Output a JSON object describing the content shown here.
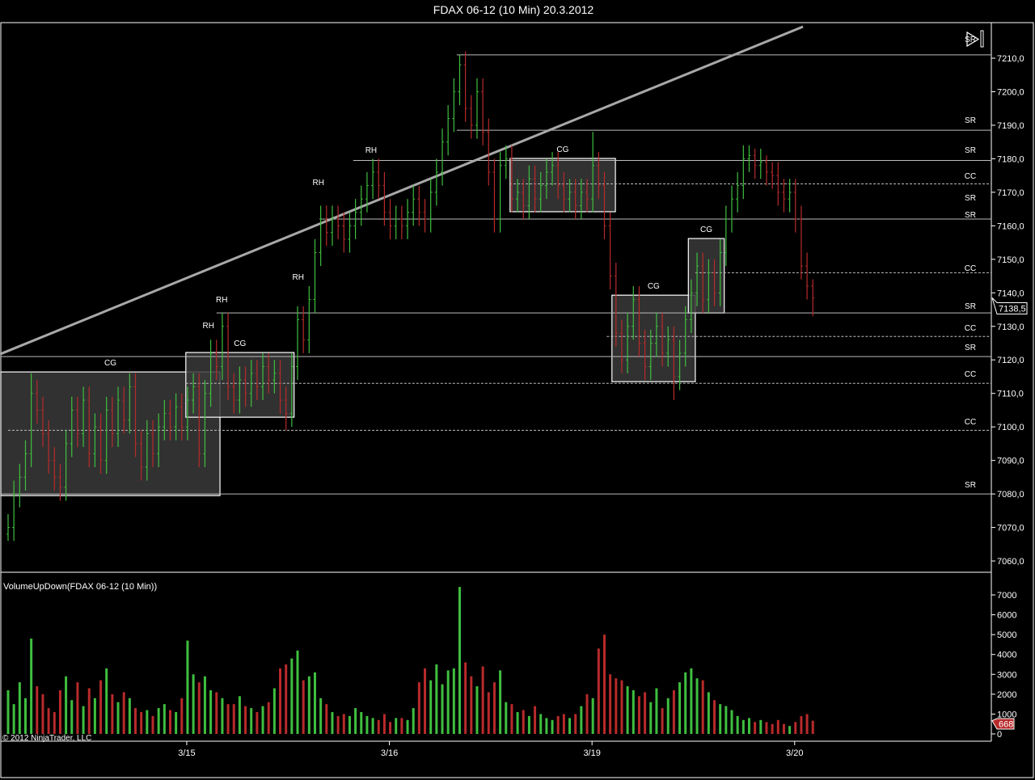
{
  "window": {
    "title": "FDAX 06-12 (10 Min)  20.3.2012"
  },
  "colors": {
    "up": "#3fbf3f",
    "down": "#b82a2a",
    "background": "#000000",
    "box_fill": "#3a3a3a",
    "level_line": "#bdbdbd",
    "trendline": "#a8a8a8",
    "volume_marker": "#b82a2a"
  },
  "indicator_label": "VolumeUpDown(FDAX 06-12 (10 Min))",
  "copyright": "© 2012 NinjaTrader, LLC",
  "chart_data": [
    {
      "type": "ohlc",
      "title": "FDAX 06-12 (10 Min)  20.3.2012",
      "y_ticks": [
        "7060,0",
        "7070,0",
        "7080,0",
        "7090,0",
        "7100,0",
        "7110,0",
        "7120,0",
        "7130,0",
        "7140,0",
        "7150,0",
        "7160,0",
        "7170,0",
        "7180,0",
        "7190,0",
        "7200,0",
        "7210,0"
      ],
      "ylim": [
        7056,
        7222
      ],
      "x_ticks": [
        {
          "label": "3/15",
          "bar": 31
        },
        {
          "label": "3/16",
          "bar": 66
        },
        {
          "label": "3/19",
          "bar": 101
        },
        {
          "label": "3/20",
          "bar": 136
        }
      ],
      "last_price": "7138,5",
      "bars_ohlc": [
        [
          7068,
          7074,
          7066,
          7070
        ],
        [
          7070,
          7084,
          7066,
          7080
        ],
        [
          7080,
          7089,
          7076,
          7085
        ],
        [
          7085,
          7096,
          7081,
          7092
        ],
        [
          7092,
          7116,
          7088,
          7110
        ],
        [
          7110,
          7114,
          7101,
          7105
        ],
        [
          7105,
          7109,
          7094,
          7098
        ],
        [
          7098,
          7102,
          7086,
          7090
        ],
        [
          7090,
          7094,
          7081,
          7085
        ],
        [
          7085,
          7089,
          7078,
          7082
        ],
        [
          7082,
          7099,
          7078,
          7095
        ],
        [
          7095,
          7109,
          7091,
          7105
        ],
        [
          7105,
          7109,
          7094,
          7098
        ],
        [
          7098,
          7112,
          7094,
          7108
        ],
        [
          7108,
          7112,
          7088,
          7092
        ],
        [
          7092,
          7104,
          7088,
          7100
        ],
        [
          7100,
          7104,
          7086,
          7090
        ],
        [
          7090,
          7109,
          7086,
          7105
        ],
        [
          7105,
          7109,
          7094,
          7098
        ],
        [
          7098,
          7112,
          7094,
          7108
        ],
        [
          7108,
          7112,
          7098,
          7102
        ],
        [
          7102,
          7116,
          7098,
          7112
        ],
        [
          7112,
          7116,
          7091,
          7095
        ],
        [
          7095,
          7099,
          7084,
          7088
        ],
        [
          7088,
          7102,
          7084,
          7098
        ],
        [
          7098,
          7102,
          7088,
          7092
        ],
        [
          7092,
          7104,
          7088,
          7100
        ],
        [
          7100,
          7108,
          7096,
          7104
        ],
        [
          7104,
          7108,
          7096,
          7100
        ],
        [
          7100,
          7110,
          7096,
          7106
        ],
        [
          7106,
          7110,
          7096,
          7100
        ],
        [
          7100,
          7112,
          7096,
          7108
        ],
        [
          7108,
          7116,
          7104,
          7112
        ],
        [
          7112,
          7116,
          7088,
          7092
        ],
        [
          7092,
          7114,
          7088,
          7110
        ],
        [
          7110,
          7126,
          7106,
          7122
        ],
        [
          7122,
          7126,
          7114,
          7118
        ],
        [
          7118,
          7134,
          7114,
          7130
        ],
        [
          7130,
          7134,
          7108,
          7112
        ],
        [
          7112,
          7116,
          7104,
          7108
        ],
        [
          7108,
          7118,
          7104,
          7114
        ],
        [
          7114,
          7118,
          7106,
          7110
        ],
        [
          7110,
          7120,
          7106,
          7116
        ],
        [
          7116,
          7120,
          7108,
          7112
        ],
        [
          7112,
          7122,
          7108,
          7118
        ],
        [
          7118,
          7122,
          7110,
          7114
        ],
        [
          7114,
          7120,
          7110,
          7116
        ],
        [
          7116,
          7120,
          7104,
          7108
        ],
        [
          7108,
          7112,
          7099,
          7104
        ],
        [
          7104,
          7122,
          7100,
          7118
        ],
        [
          7118,
          7136,
          7114,
          7132
        ],
        [
          7132,
          7136,
          7122,
          7126
        ],
        [
          7126,
          7142,
          7122,
          7138
        ],
        [
          7138,
          7156,
          7134,
          7152
        ],
        [
          7152,
          7166,
          7148,
          7162
        ],
        [
          7162,
          7166,
          7154,
          7158
        ],
        [
          7158,
          7166,
          7154,
          7162
        ],
        [
          7162,
          7166,
          7156,
          7160
        ],
        [
          7160,
          7164,
          7152,
          7156
        ],
        [
          7156,
          7164,
          7152,
          7160
        ],
        [
          7160,
          7168,
          7156,
          7164
        ],
        [
          7164,
          7172,
          7160,
          7168
        ],
        [
          7168,
          7176,
          7164,
          7172
        ],
        [
          7172,
          7180,
          7168,
          7176
        ],
        [
          7176,
          7180,
          7168,
          7172
        ],
        [
          7172,
          7176,
          7160,
          7164
        ],
        [
          7164,
          7168,
          7156,
          7160
        ],
        [
          7160,
          7166,
          7156,
          7162
        ],
        [
          7162,
          7166,
          7156,
          7160
        ],
        [
          7160,
          7168,
          7156,
          7164
        ],
        [
          7164,
          7172,
          7160,
          7168
        ],
        [
          7168,
          7172,
          7160,
          7164
        ],
        [
          7164,
          7168,
          7158,
          7162
        ],
        [
          7162,
          7174,
          7158,
          7170
        ],
        [
          7170,
          7180,
          7166,
          7176
        ],
        [
          7176,
          7189,
          7172,
          7185
        ],
        [
          7185,
          7196,
          7181,
          7192
        ],
        [
          7192,
          7204,
          7188,
          7200
        ],
        [
          7200,
          7211,
          7196,
          7208
        ],
        [
          7208,
          7212,
          7191,
          7195
        ],
        [
          7195,
          7199,
          7186,
          7190
        ],
        [
          7190,
          7204,
          7186,
          7200
        ],
        [
          7200,
          7204,
          7184,
          7188
        ],
        [
          7188,
          7192,
          7172,
          7176
        ],
        [
          7176,
          7180,
          7158,
          7162
        ],
        [
          7162,
          7182,
          7158,
          7178
        ],
        [
          7178,
          7184,
          7174,
          7180
        ],
        [
          7180,
          7184,
          7164,
          7168
        ],
        [
          7168,
          7174,
          7164,
          7170
        ],
        [
          7170,
          7174,
          7162,
          7166
        ],
        [
          7166,
          7178,
          7162,
          7174
        ],
        [
          7174,
          7178,
          7164,
          7168
        ],
        [
          7168,
          7176,
          7164,
          7172
        ],
        [
          7172,
          7180,
          7168,
          7176
        ],
        [
          7176,
          7182,
          7172,
          7178
        ],
        [
          7178,
          7182,
          7168,
          7172
        ],
        [
          7172,
          7176,
          7164,
          7168
        ],
        [
          7168,
          7174,
          7164,
          7170
        ],
        [
          7170,
          7174,
          7162,
          7166
        ],
        [
          7166,
          7174,
          7162,
          7170
        ],
        [
          7170,
          7174,
          7164,
          7168
        ],
        [
          7168,
          7188,
          7164,
          7178
        ],
        [
          7178,
          7182,
          7168,
          7172
        ],
        [
          7172,
          7176,
          7156,
          7160
        ],
        [
          7160,
          7164,
          7141,
          7145
        ],
        [
          7145,
          7149,
          7124,
          7128
        ],
        [
          7128,
          7132,
          7116,
          7120
        ],
        [
          7120,
          7134,
          7116,
          7130
        ],
        [
          7130,
          7142,
          7126,
          7138
        ],
        [
          7138,
          7142,
          7121,
          7125
        ],
        [
          7125,
          7129,
          7114,
          7118
        ],
        [
          7118,
          7129,
          7114,
          7125
        ],
        [
          7125,
          7134,
          7121,
          7130
        ],
        [
          7130,
          7134,
          7118,
          7122
        ],
        [
          7122,
          7130,
          7118,
          7126
        ],
        [
          7126,
          7130,
          7108,
          7115
        ],
        [
          7115,
          7126,
          7111,
          7122
        ],
        [
          7122,
          7136,
          7118,
          7132
        ],
        [
          7132,
          7144,
          7128,
          7140
        ],
        [
          7140,
          7152,
          7136,
          7148
        ],
        [
          7148,
          7152,
          7134,
          7138
        ],
        [
          7138,
          7150,
          7134,
          7146
        ],
        [
          7146,
          7150,
          7136,
          7140
        ],
        [
          7140,
          7156,
          7136,
          7152
        ],
        [
          7152,
          7166,
          7148,
          7162
        ],
        [
          7162,
          7172,
          7158,
          7168
        ],
        [
          7168,
          7176,
          7164,
          7172
        ],
        [
          7172,
          7184,
          7168,
          7180
        ],
        [
          7180,
          7184,
          7176,
          7181
        ],
        [
          7181,
          7183,
          7174,
          7178
        ],
        [
          7178,
          7183,
          7174,
          7179
        ],
        [
          7179,
          7181,
          7172,
          7176
        ],
        [
          7176,
          7179,
          7171,
          7175
        ],
        [
          7175,
          7179,
          7166,
          7170
        ],
        [
          7170,
          7174,
          7164,
          7168
        ],
        [
          7168,
          7174,
          7164,
          7170
        ],
        [
          7170,
          7174,
          7158,
          7162
        ],
        [
          7162,
          7166,
          7144,
          7148
        ],
        [
          7148,
          7152,
          7138,
          7142
        ],
        [
          7142,
          7144,
          7133,
          7138.5
        ]
      ],
      "levels": [
        {
          "price": 7211,
          "from_bar": 77.5,
          "style": "solid"
        },
        {
          "price": 7188.5,
          "from_bar": 77.5,
          "style": "solid"
        },
        {
          "price": 7179.5,
          "from_bar": 59.6,
          "style": "solid"
        },
        {
          "price": 7172.5,
          "from_bar": 86.6,
          "style": "dashed"
        },
        {
          "price": 7162,
          "from_bar": 53.8,
          "style": "solid"
        },
        {
          "price": 7146,
          "from_bar": 118.7,
          "style": "dashed"
        },
        {
          "price": 7134,
          "from_bar": 36,
          "style": "solid"
        },
        {
          "price": 7127,
          "from_bar": 103.4,
          "style": "dashed"
        },
        {
          "price": 7121,
          "from_bar": -1.4,
          "style": "solid"
        },
        {
          "price": 7113,
          "from_bar": 30.7,
          "style": "dashed"
        },
        {
          "price": 7099,
          "from_bar": 0,
          "style": "dashed"
        },
        {
          "price": 7080,
          "from_bar": -1.4,
          "style": "solid"
        }
      ],
      "level_labels": [
        {
          "text": "SR",
          "price": 7215.8
        },
        {
          "text": "SR",
          "price": 7191.7
        },
        {
          "text": "SR",
          "price": 7182.8
        },
        {
          "text": "CC",
          "price": 7175
        },
        {
          "text": "SR",
          "price": 7168.5
        },
        {
          "text": "SR",
          "price": 7163.5
        },
        {
          "text": "CC",
          "price": 7147.5
        },
        {
          "text": "SR",
          "price": 7136.2
        },
        {
          "text": "CC",
          "price": 7129.7
        },
        {
          "text": "SR",
          "price": 7123.9
        },
        {
          "text": "CC",
          "price": 7116
        },
        {
          "text": "CC",
          "price": 7101.7
        },
        {
          "text": "SR",
          "price": 7082.9
        }
      ],
      "boxes": [
        {
          "label": "CG",
          "bar_from": -1.4,
          "bar_to": 36.6,
          "price_high": 7116.4,
          "price_low": 7079.5
        },
        {
          "label": "CG",
          "bar_from": 30.7,
          "bar_to": 49.4,
          "price_high": 7122.2,
          "price_low": 7102.9
        },
        {
          "label": "CG",
          "bar_from": 86.7,
          "bar_to": 104.9,
          "price_high": 7180.1,
          "price_low": 7164.2
        },
        {
          "label": "CG",
          "bar_from": 104.3,
          "bar_to": 118.7,
          "price_high": 7139.3,
          "price_low": 7113.5
        },
        {
          "label": "CG",
          "bar_from": 117.5,
          "bar_to": 123.7,
          "price_high": 7156.2,
          "price_low": 7134.0
        }
      ],
      "markers": [
        {
          "text": "RH",
          "bar": 34.6,
          "price": 7129.5
        },
        {
          "text": "RH",
          "bar": 36.9,
          "price": 7137.2
        },
        {
          "text": "RH",
          "bar": 50.1,
          "price": 7143.9
        },
        {
          "text": "RH",
          "bar": 53.6,
          "price": 7172.1
        },
        {
          "text": "RH",
          "bar": 62.7,
          "price": 7181.8
        }
      ],
      "trendline": {
        "from": {
          "bar": -1.4,
          "price": 7121.7
        },
        "to": {
          "bar": 137.3,
          "price": 7219.4
        }
      }
    },
    {
      "type": "bar",
      "title": "VolumeUpDown(FDAX 06-12 (10 Min))",
      "y_ticks": [
        "0",
        "1000",
        "2000",
        "3000",
        "4000",
        "5000",
        "6000",
        "7000"
      ],
      "ylim": [
        0,
        7500
      ],
      "last_value": "668",
      "values": [
        2200,
        1500,
        2600,
        1800,
        4800,
        2400,
        2000,
        1300,
        1100,
        2200,
        2900,
        1700,
        2600,
        1400,
        2300,
        1800,
        2700,
        3300,
        2000,
        1600,
        2100,
        1800,
        1300,
        1100,
        1200,
        900,
        1300,
        1500,
        1200,
        1100,
        1800,
        4700,
        3000,
        2600,
        2900,
        2200,
        2100,
        1800,
        1500,
        1500,
        1900,
        1400,
        1300,
        1100,
        1400,
        1600,
        2300,
        3300,
        3500,
        3800,
        4200,
        2700,
        2900,
        3100,
        1800,
        1500,
        1100,
        900,
        1000,
        900,
        1300,
        1100,
        900,
        800,
        700,
        1000,
        600,
        800,
        800,
        700,
        1300,
        2600,
        3300,
        2700,
        3500,
        2500,
        3200,
        3300,
        7400,
        3600,
        2900,
        2400,
        3400,
        2100,
        2600,
        3200,
        1600,
        1500,
        1100,
        1200,
        900,
        1400,
        1000,
        800,
        700,
        900,
        1000,
        800,
        1000,
        1400,
        2000,
        1800,
        4300,
        5000,
        3000,
        2800,
        2700,
        2400,
        2200,
        1900,
        2100,
        1600,
        2300,
        1300,
        1800,
        2200,
        2600,
        3100,
        3300,
        2800,
        2700,
        2100,
        1700,
        1500,
        1400,
        1200,
        900,
        700,
        800,
        600,
        700,
        600,
        500,
        700,
        500,
        400,
        600,
        900,
        1000,
        668
      ]
    }
  ],
  "icons": {
    "scroll_end": "play-to-end-icon"
  }
}
